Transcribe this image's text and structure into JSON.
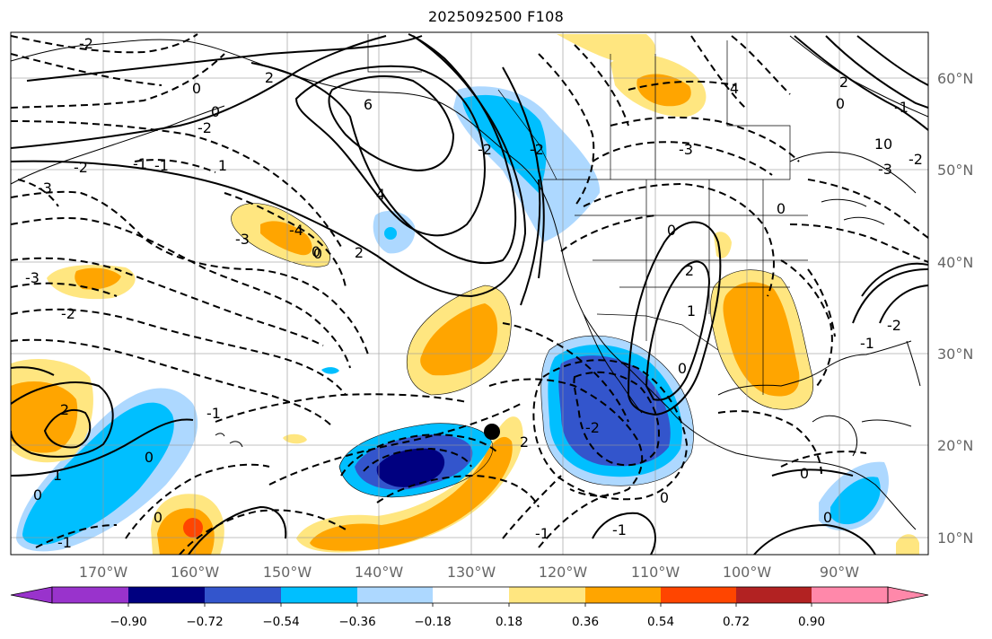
{
  "title": "2025092500 F108",
  "map": {
    "lon_ticks": [
      "170°W",
      "160°W",
      "150°W",
      "140°W",
      "130°W",
      "120°W",
      "110°W",
      "100°W",
      "90°W"
    ],
    "lat_ticks": [
      "60°N",
      "50°N",
      "40°N",
      "30°N",
      "20°N",
      "10°N"
    ],
    "contour_labels": [
      "-2",
      "0",
      "2",
      "6",
      "4",
      "-1",
      "1",
      "-3",
      "-4",
      "-3",
      "-2",
      "0",
      "-2",
      "0",
      "-1",
      "-3",
      "-2",
      "0",
      "2",
      "1",
      "0",
      "-1",
      "2",
      "2",
      "0",
      "-2",
      "-1",
      "2",
      "0",
      "-2",
      "-3",
      "1",
      "0",
      "-1",
      "-2",
      "2",
      "4",
      "0",
      "-2",
      "-3",
      "-1",
      "0",
      "0",
      "-1",
      "-2",
      "10",
      "0",
      "-1",
      "0",
      "0"
    ],
    "marker": "storm-position-dot"
  },
  "colorbar": {
    "labels": [
      "−0.90",
      "−0.72",
      "−0.54",
      "−0.36",
      "−0.18",
      "0.18",
      "0.36",
      "0.54",
      "0.72",
      "0.90"
    ],
    "colors": [
      "#9933cc",
      "#000080",
      "#3355cc",
      "#00bfff",
      "#add8ff",
      "#ffffff",
      "#ffe680",
      "#ffa500",
      "#ff4500",
      "#b22222",
      "#ff88aa"
    ]
  }
}
